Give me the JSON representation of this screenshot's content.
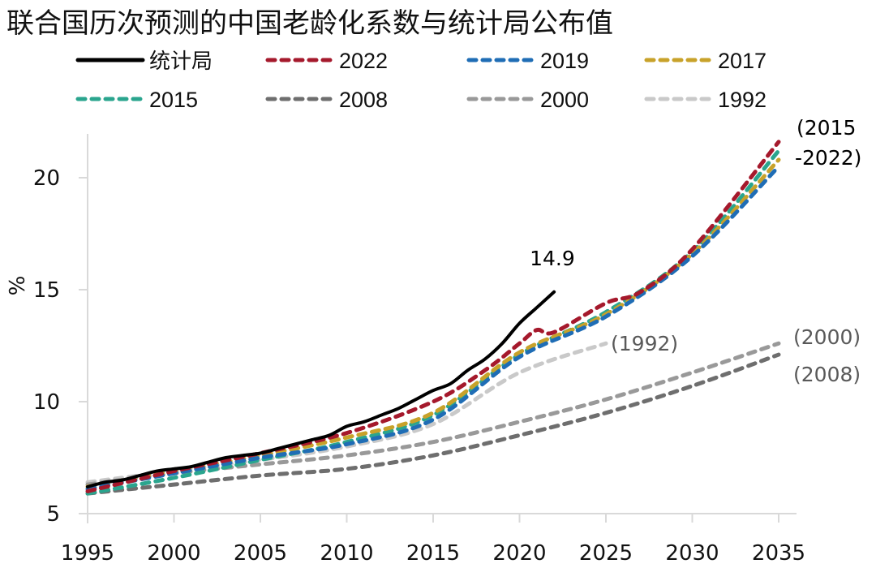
{
  "chart_data": {
    "type": "line",
    "title": "联合国历次预测的中国老龄化系数与统计局公布值",
    "xlabel": "",
    "ylabel": "%",
    "xlim": [
      1995,
      2035
    ],
    "ylim": [
      5,
      22
    ],
    "x_ticks": [
      "1995",
      "2000",
      "2005",
      "2010",
      "2015",
      "2020",
      "2025",
      "2030",
      "2035"
    ],
    "y_ticks": [
      "5",
      "10",
      "15",
      "20"
    ],
    "grid": false,
    "legend_position": "top",
    "series": [
      {
        "name": "统计局",
        "color": "#000000",
        "dashed": false,
        "x": [
          1995,
          1996,
          1997,
          1998,
          1999,
          2000,
          2001,
          2002,
          2003,
          2004,
          2005,
          2006,
          2007,
          2008,
          2009,
          2010,
          2011,
          2012,
          2013,
          2014,
          2015,
          2016,
          2017,
          2018,
          2019,
          2020,
          2021,
          2022
        ],
        "values": [
          6.2,
          6.4,
          6.5,
          6.7,
          6.9,
          7.0,
          7.1,
          7.3,
          7.5,
          7.6,
          7.7,
          7.9,
          8.1,
          8.3,
          8.5,
          8.9,
          9.1,
          9.4,
          9.7,
          10.1,
          10.5,
          10.8,
          11.4,
          11.9,
          12.6,
          13.5,
          14.2,
          14.9
        ]
      },
      {
        "name": "2022",
        "color": "#a5192c",
        "dashed": true,
        "x": [
          1995,
          2000,
          2005,
          2010,
          2015,
          2018,
          2020,
          2021,
          2022,
          2025,
          2027,
          2030,
          2035
        ],
        "values": [
          6.0,
          6.9,
          7.7,
          8.6,
          10.0,
          11.4,
          12.6,
          13.2,
          13.1,
          14.4,
          14.9,
          16.8,
          21.6
        ]
      },
      {
        "name": "2019",
        "color": "#1f6db5",
        "dashed": true,
        "x": [
          1995,
          2000,
          2005,
          2010,
          2015,
          2020,
          2025,
          2030,
          2035
        ],
        "values": [
          6.1,
          6.8,
          7.5,
          8.1,
          9.2,
          12.0,
          13.8,
          16.5,
          20.5
        ]
      },
      {
        "name": "2017",
        "color": "#c8a22a",
        "dashed": true,
        "x": [
          1995,
          2000,
          2005,
          2010,
          2015,
          2020,
          2025,
          2030,
          2035
        ],
        "values": [
          6.2,
          6.9,
          7.6,
          8.4,
          9.5,
          12.2,
          13.9,
          16.6,
          20.8
        ]
      },
      {
        "name": "2015",
        "color": "#2aa58e",
        "dashed": true,
        "x": [
          1995,
          2000,
          2005,
          2010,
          2015,
          2020,
          2025,
          2030,
          2035
        ],
        "values": [
          5.9,
          6.6,
          7.4,
          8.2,
          9.4,
          12.1,
          14.0,
          16.7,
          21.2
        ]
      },
      {
        "name": "2008",
        "color": "#6e6e6e",
        "dashed": true,
        "x": [
          1995,
          2000,
          2005,
          2010,
          2015,
          2020,
          2025,
          2030,
          2035
        ],
        "values": [
          5.9,
          6.3,
          6.7,
          7.0,
          7.6,
          8.5,
          9.5,
          10.7,
          12.1
        ]
      },
      {
        "name": "2000",
        "color": "#999999",
        "dashed": true,
        "x": [
          1995,
          2000,
          2005,
          2010,
          2015,
          2020,
          2025,
          2030,
          2035
        ],
        "values": [
          6.3,
          6.8,
          7.2,
          7.6,
          8.2,
          9.1,
          10.1,
          11.3,
          12.6
        ]
      },
      {
        "name": "1992",
        "color": "#c9c9c9",
        "dashed": true,
        "x": [
          1995,
          2000,
          2005,
          2010,
          2015,
          2020,
          2025
        ],
        "values": [
          6.4,
          6.9,
          7.4,
          8.0,
          9.0,
          11.3,
          12.6
        ]
      }
    ],
    "annotations": [
      {
        "text": "14.9",
        "x": 2022,
        "y": 14.9,
        "color": "#000000"
      },
      {
        "text": "(1992)",
        "x": 2025,
        "y": 12.6,
        "color": "#595959"
      },
      {
        "text": "(2015",
        "x": 2035,
        "y": 21.6,
        "color": "#000000"
      },
      {
        "text": "-2022)",
        "x": 2035,
        "y": 21.6,
        "color": "#000000"
      },
      {
        "text": "(2000)",
        "x": 2035,
        "y": 12.6,
        "color": "#595959"
      },
      {
        "text": "(2008)",
        "x": 2035,
        "y": 12.1,
        "color": "#595959"
      }
    ]
  }
}
